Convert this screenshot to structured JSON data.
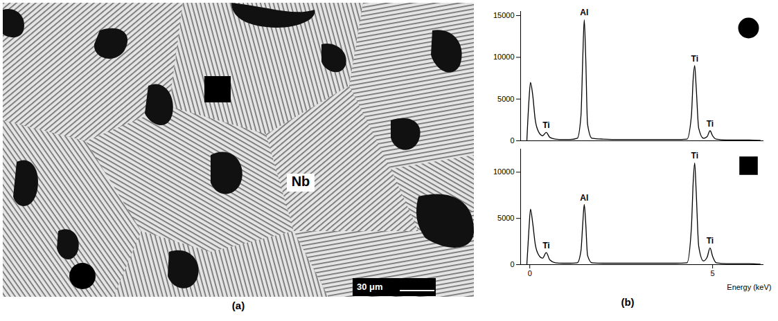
{
  "panel_labels": [
    "(a)",
    "(b)"
  ],
  "micrograph": {
    "labels": [
      "Nb"
    ],
    "scale_bar": "30 μm",
    "markers": [
      "square",
      "circle"
    ]
  },
  "chart_data": [
    {
      "type": "line",
      "marker": "circle",
      "color": "#000000",
      "tick_labels": "y",
      "x": [
        -0.08,
        -0.02,
        0.02,
        0.08,
        0.15,
        0.25,
        0.35,
        0.45,
        0.55,
        0.7,
        0.9,
        1.1,
        1.3,
        1.4,
        1.45,
        1.49,
        1.53,
        1.58,
        1.7,
        2.0,
        2.5,
        3.0,
        3.5,
        4.0,
        4.3,
        4.42,
        4.47,
        4.51,
        4.55,
        4.62,
        4.75,
        4.85,
        4.93,
        5.0,
        5.1,
        5.4,
        6.0,
        6.3
      ],
      "values": [
        0,
        5000,
        7000,
        5500,
        2500,
        1000,
        600,
        1000,
        400,
        200,
        150,
        150,
        300,
        3000,
        10000,
        14500,
        10000,
        2000,
        300,
        200,
        150,
        150,
        150,
        150,
        200,
        3000,
        7500,
        9000,
        6500,
        1500,
        300,
        500,
        1200,
        600,
        200,
        100,
        100,
        50
      ],
      "xlim": [
        -0.25,
        6.4
      ],
      "ylim": [
        0,
        15500
      ],
      "yticks": [
        0,
        5000,
        10000,
        15000
      ],
      "annotations": [
        {
          "text": "Ti",
          "x": 0.45,
          "y": 1000
        },
        {
          "text": "Al",
          "x": 1.49,
          "y": 14500
        },
        {
          "text": "Ti",
          "x": 4.51,
          "y": 9000
        },
        {
          "text": "Ti",
          "x": 4.93,
          "y": 1200
        }
      ]
    },
    {
      "type": "line",
      "marker": "square",
      "color": "#000000",
      "xlabel": "Energy (keV)",
      "x": [
        -0.08,
        -0.02,
        0.02,
        0.08,
        0.15,
        0.25,
        0.35,
        0.45,
        0.55,
        0.7,
        0.9,
        1.1,
        1.3,
        1.4,
        1.45,
        1.49,
        1.53,
        1.58,
        1.7,
        2.0,
        2.5,
        3.0,
        3.5,
        4.0,
        4.3,
        4.42,
        4.47,
        4.51,
        4.55,
        4.62,
        4.75,
        4.85,
        4.93,
        5.0,
        5.1,
        5.4,
        6.0,
        6.3
      ],
      "values": [
        0,
        4000,
        6000,
        4500,
        2200,
        1000,
        700,
        1300,
        500,
        200,
        150,
        150,
        200,
        1500,
        4500,
        6500,
        4500,
        1000,
        200,
        150,
        150,
        150,
        150,
        150,
        200,
        4000,
        9000,
        11000,
        8000,
        2000,
        400,
        800,
        1800,
        900,
        200,
        100,
        100,
        50
      ],
      "xlim": [
        -0.25,
        6.4
      ],
      "ylim": [
        0,
        12500
      ],
      "xticks": [
        0,
        5
      ],
      "yticks": [
        0,
        5000,
        10000
      ],
      "annotations": [
        {
          "text": "Ti",
          "x": 0.45,
          "y": 1300
        },
        {
          "text": "Al",
          "x": 1.49,
          "y": 6500
        },
        {
          "text": "Ti",
          "x": 4.51,
          "y": 11000
        },
        {
          "text": "Ti",
          "x": 4.93,
          "y": 1800
        }
      ]
    }
  ]
}
